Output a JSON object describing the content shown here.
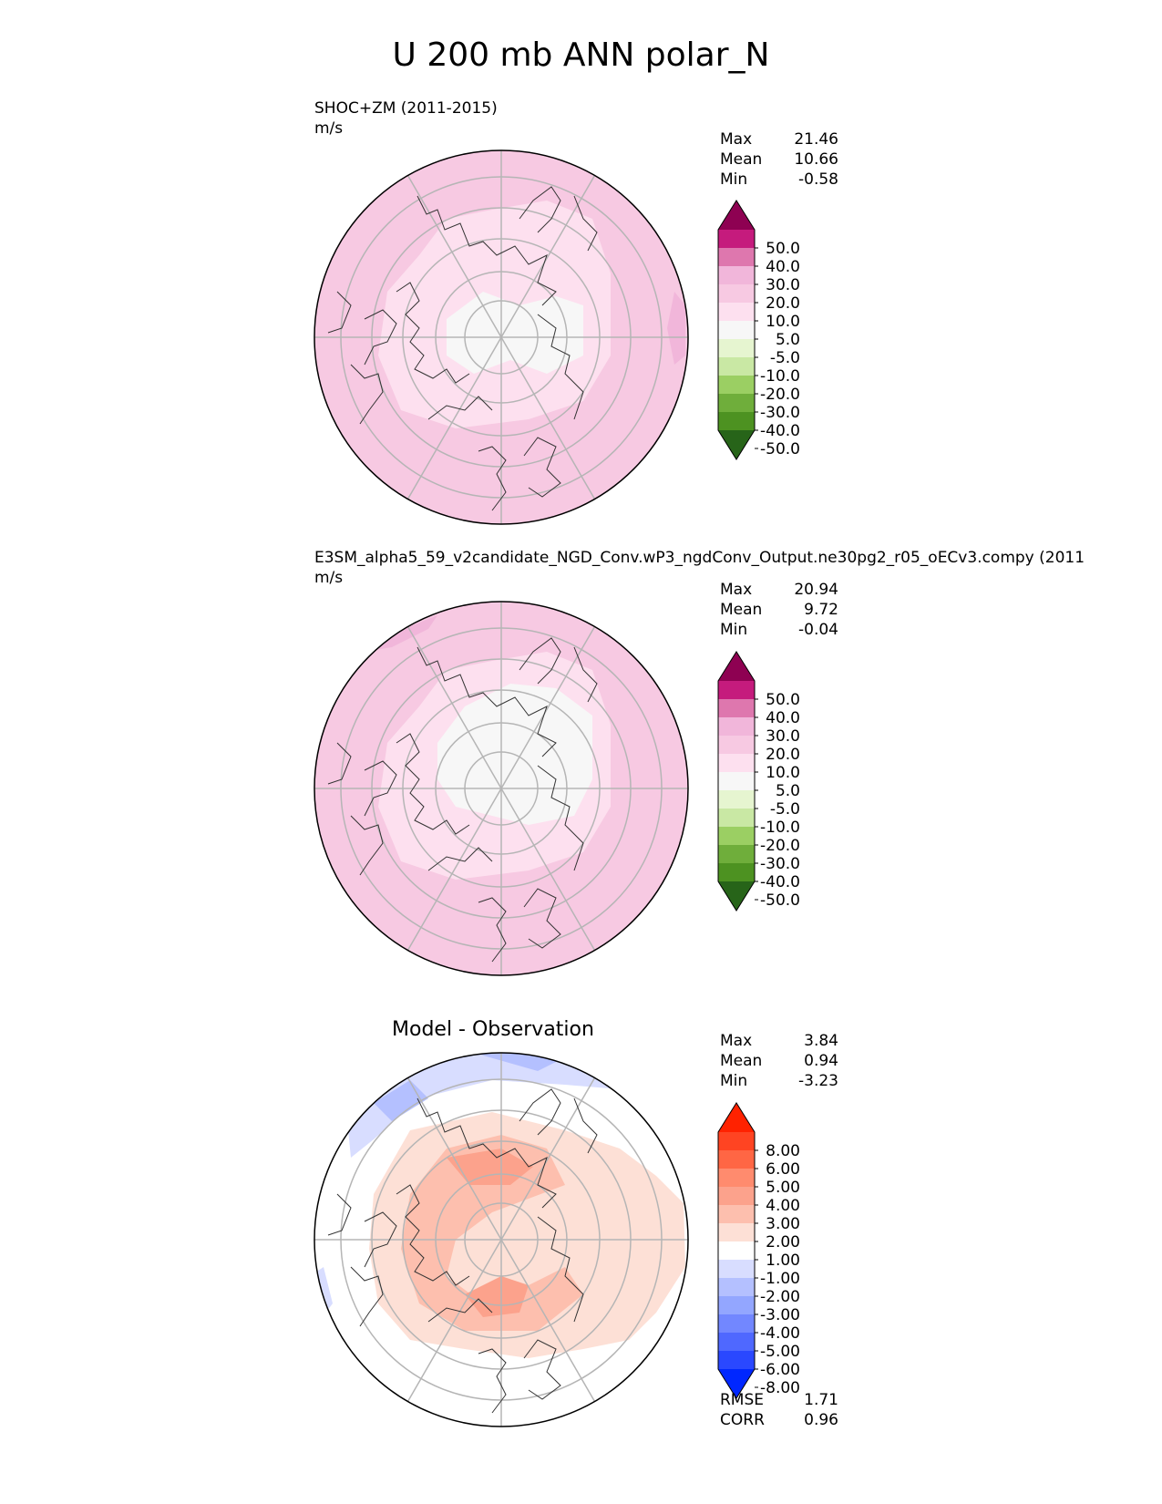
{
  "title": "U 200 mb ANN polar_N",
  "panels": [
    {
      "title_line1": "SHOC+ZM (2011-2015)",
      "units": "m/s",
      "stats": [
        {
          "label": "Max",
          "value": "21.46"
        },
        {
          "label": "Mean",
          "value": "10.66"
        },
        {
          "label": "Min",
          "value": "-0.58"
        }
      ]
    },
    {
      "title_line1": "E3SM_alpha5_59_v2candidate_NGD_Conv.wP3_ngdConv_Output.ne30pg2_r05_oECv3.compy (2011",
      "units": "m/s",
      "stats": [
        {
          "label": "Max",
          "value": "20.94"
        },
        {
          "label": "Mean",
          "value": "9.72"
        },
        {
          "label": "Min",
          "value": "-0.04"
        }
      ]
    },
    {
      "title_line1": "Model - Observation",
      "stats": [
        {
          "label": "Max",
          "value": "3.84"
        },
        {
          "label": "Mean",
          "value": "0.94"
        },
        {
          "label": "Min",
          "value": "-3.23"
        }
      ],
      "extra_stats": [
        {
          "label": "RMSE",
          "value": "1.71"
        },
        {
          "label": "CORR",
          "value": "0.96"
        }
      ]
    }
  ],
  "chart_data": [
    {
      "type": "heatmap",
      "projection": "polar stereographic, north",
      "title": "SHOC+ZM (2011-2015)",
      "units": "m/s",
      "max": 21.46,
      "mean": 10.66,
      "min": -0.58,
      "colorbar": {
        "ticks": [
          "50.0",
          "40.0",
          "30.0",
          "20.0",
          "10.0",
          "5.0",
          "-5.0",
          "-10.0",
          "-20.0",
          "-30.0",
          "-40.0",
          "-50.0"
        ],
        "colors": [
          "#8e0152",
          "#c51b7d",
          "#de77ae",
          "#f1b6da",
          "#f7c9e2",
          "#fde0ef",
          "#f7f7f7",
          "#e6f5d0",
          "#c9e8a4",
          "#9bcf63",
          "#6fae3b",
          "#4d9221",
          "#276419"
        ]
      }
    },
    {
      "type": "heatmap",
      "projection": "polar stereographic, north",
      "title": "E3SM_alpha5_59_v2candidate_NGD_Conv.wP3_ngdConv_Output.ne30pg2_r05_oECv3.compy (2011",
      "units": "m/s",
      "max": 20.94,
      "mean": 9.72,
      "min": -0.04,
      "colorbar": {
        "ticks": [
          "50.0",
          "40.0",
          "30.0",
          "20.0",
          "10.0",
          "5.0",
          "-5.0",
          "-10.0",
          "-20.0",
          "-30.0",
          "-40.0",
          "-50.0"
        ],
        "colors": [
          "#8e0152",
          "#c51b7d",
          "#de77ae",
          "#f1b6da",
          "#f7c9e2",
          "#fde0ef",
          "#f7f7f7",
          "#e6f5d0",
          "#c9e8a4",
          "#9bcf63",
          "#6fae3b",
          "#4d9221",
          "#276419"
        ]
      }
    },
    {
      "type": "heatmap",
      "projection": "polar stereographic, north",
      "title": "Model - Observation",
      "max": 3.84,
      "mean": 0.94,
      "min": -3.23,
      "rmse": 1.71,
      "corr": 0.96,
      "colorbar": {
        "ticks": [
          "8.00",
          "6.00",
          "5.00",
          "4.00",
          "3.00",
          "2.00",
          "1.00",
          "-1.00",
          "-2.00",
          "-3.00",
          "-4.00",
          "-5.00",
          "-6.00",
          "-8.00"
        ],
        "colors": [
          "#ff2200",
          "#ff4422",
          "#ff6644",
          "#ff8b6e",
          "#fca28c",
          "#fdbfae",
          "#fde0d6",
          "#ffffff",
          "#d8ddff",
          "#b4c0ff",
          "#93a6ff",
          "#7287ff",
          "#4f68ff",
          "#2a48ff",
          "#0027ff"
        ]
      }
    }
  ]
}
